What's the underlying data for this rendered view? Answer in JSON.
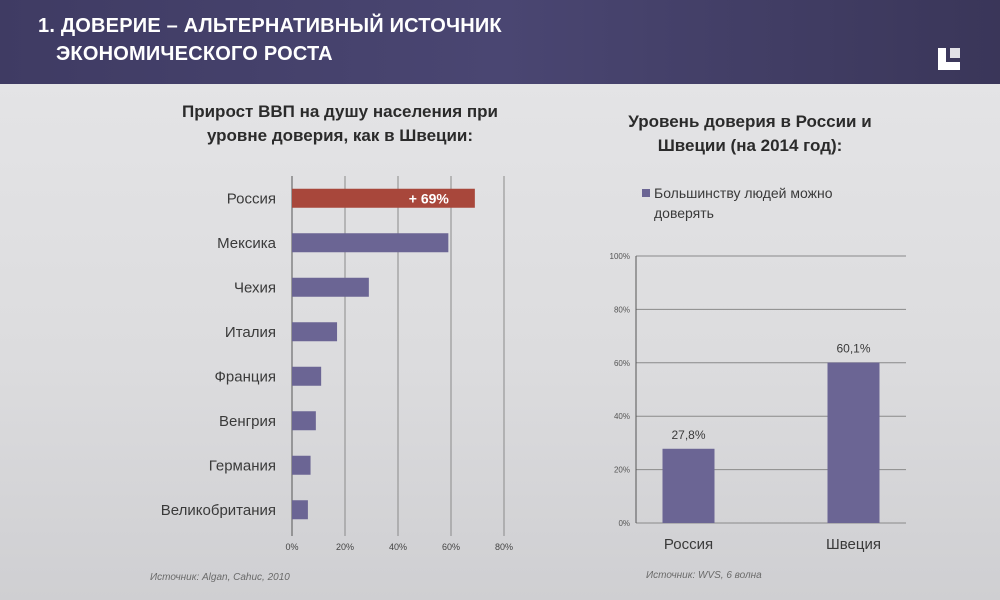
{
  "header": {
    "title_line1": "1. ДОВЕРИЕ – АЛЬТЕРНАТИВНЫЙ ИСТОЧНИК",
    "title_line2": "ЭКОНОМИЧЕСКОГО РОСТА",
    "accent_color": "#423e68"
  },
  "chart_data": [
    {
      "type": "bar",
      "orientation": "horizontal",
      "title": "Прирост ВВП на душу населения при уровне доверия, как в Швеции:",
      "title_line1": "Прирост ВВП на душу населения при",
      "title_line2": "уровне доверия, как в Швеции:",
      "categories": [
        "Россия",
        "Мексика",
        "Чехия",
        "Италия",
        "Франция",
        "Венгрия",
        "Германия",
        "Великобритания"
      ],
      "values": [
        69,
        59,
        29,
        17,
        11,
        9,
        7,
        6
      ],
      "highlight_index": 0,
      "highlight_label": "+ 69%",
      "highlight_color": "#a8473b",
      "bar_color": "#6b6594",
      "xlim": [
        0,
        80
      ],
      "xticks": [
        "0%",
        "20%",
        "40%",
        "60%",
        "80%"
      ],
      "grid": true,
      "source": "Источник: Algan, Cahuc, 2010"
    },
    {
      "type": "bar",
      "orientation": "vertical",
      "title": "Уровень доверия в России и Швеции (на 2014 год):",
      "title_line1": "Уровень доверия в России и",
      "title_line2": "Швеции (на 2014 год):",
      "legend_line1": "Большинству людей можно",
      "legend_line2": "доверять",
      "legend_placement": "top",
      "categories": [
        "Россия",
        "Швеция"
      ],
      "series": [
        {
          "name": "Большинству людей можно доверять",
          "values": [
            27.8,
            60.1
          ],
          "labels": [
            "27,8%",
            "60,1%"
          ]
        }
      ],
      "bar_color": "#6b6594",
      "ylim": [
        0,
        100
      ],
      "yticks": [
        "0%",
        "20%",
        "40%",
        "60%",
        "80%",
        "100%"
      ],
      "grid": true,
      "source": "Источник: WVS, 6 волна"
    }
  ]
}
